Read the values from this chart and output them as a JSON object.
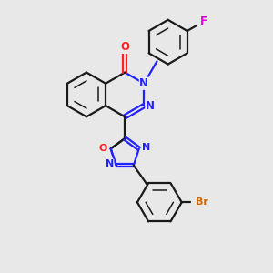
{
  "bg_color": "#e8e8e8",
  "bond_color": "#1a1a1a",
  "n_color": "#2222ff",
  "o_color": "#ff2222",
  "f_color": "#dd00dd",
  "br_color": "#cc6600",
  "figsize": [
    3.0,
    3.0
  ],
  "dpi": 100,
  "xlim": [
    0,
    10
  ],
  "ylim": [
    0,
    10
  ]
}
